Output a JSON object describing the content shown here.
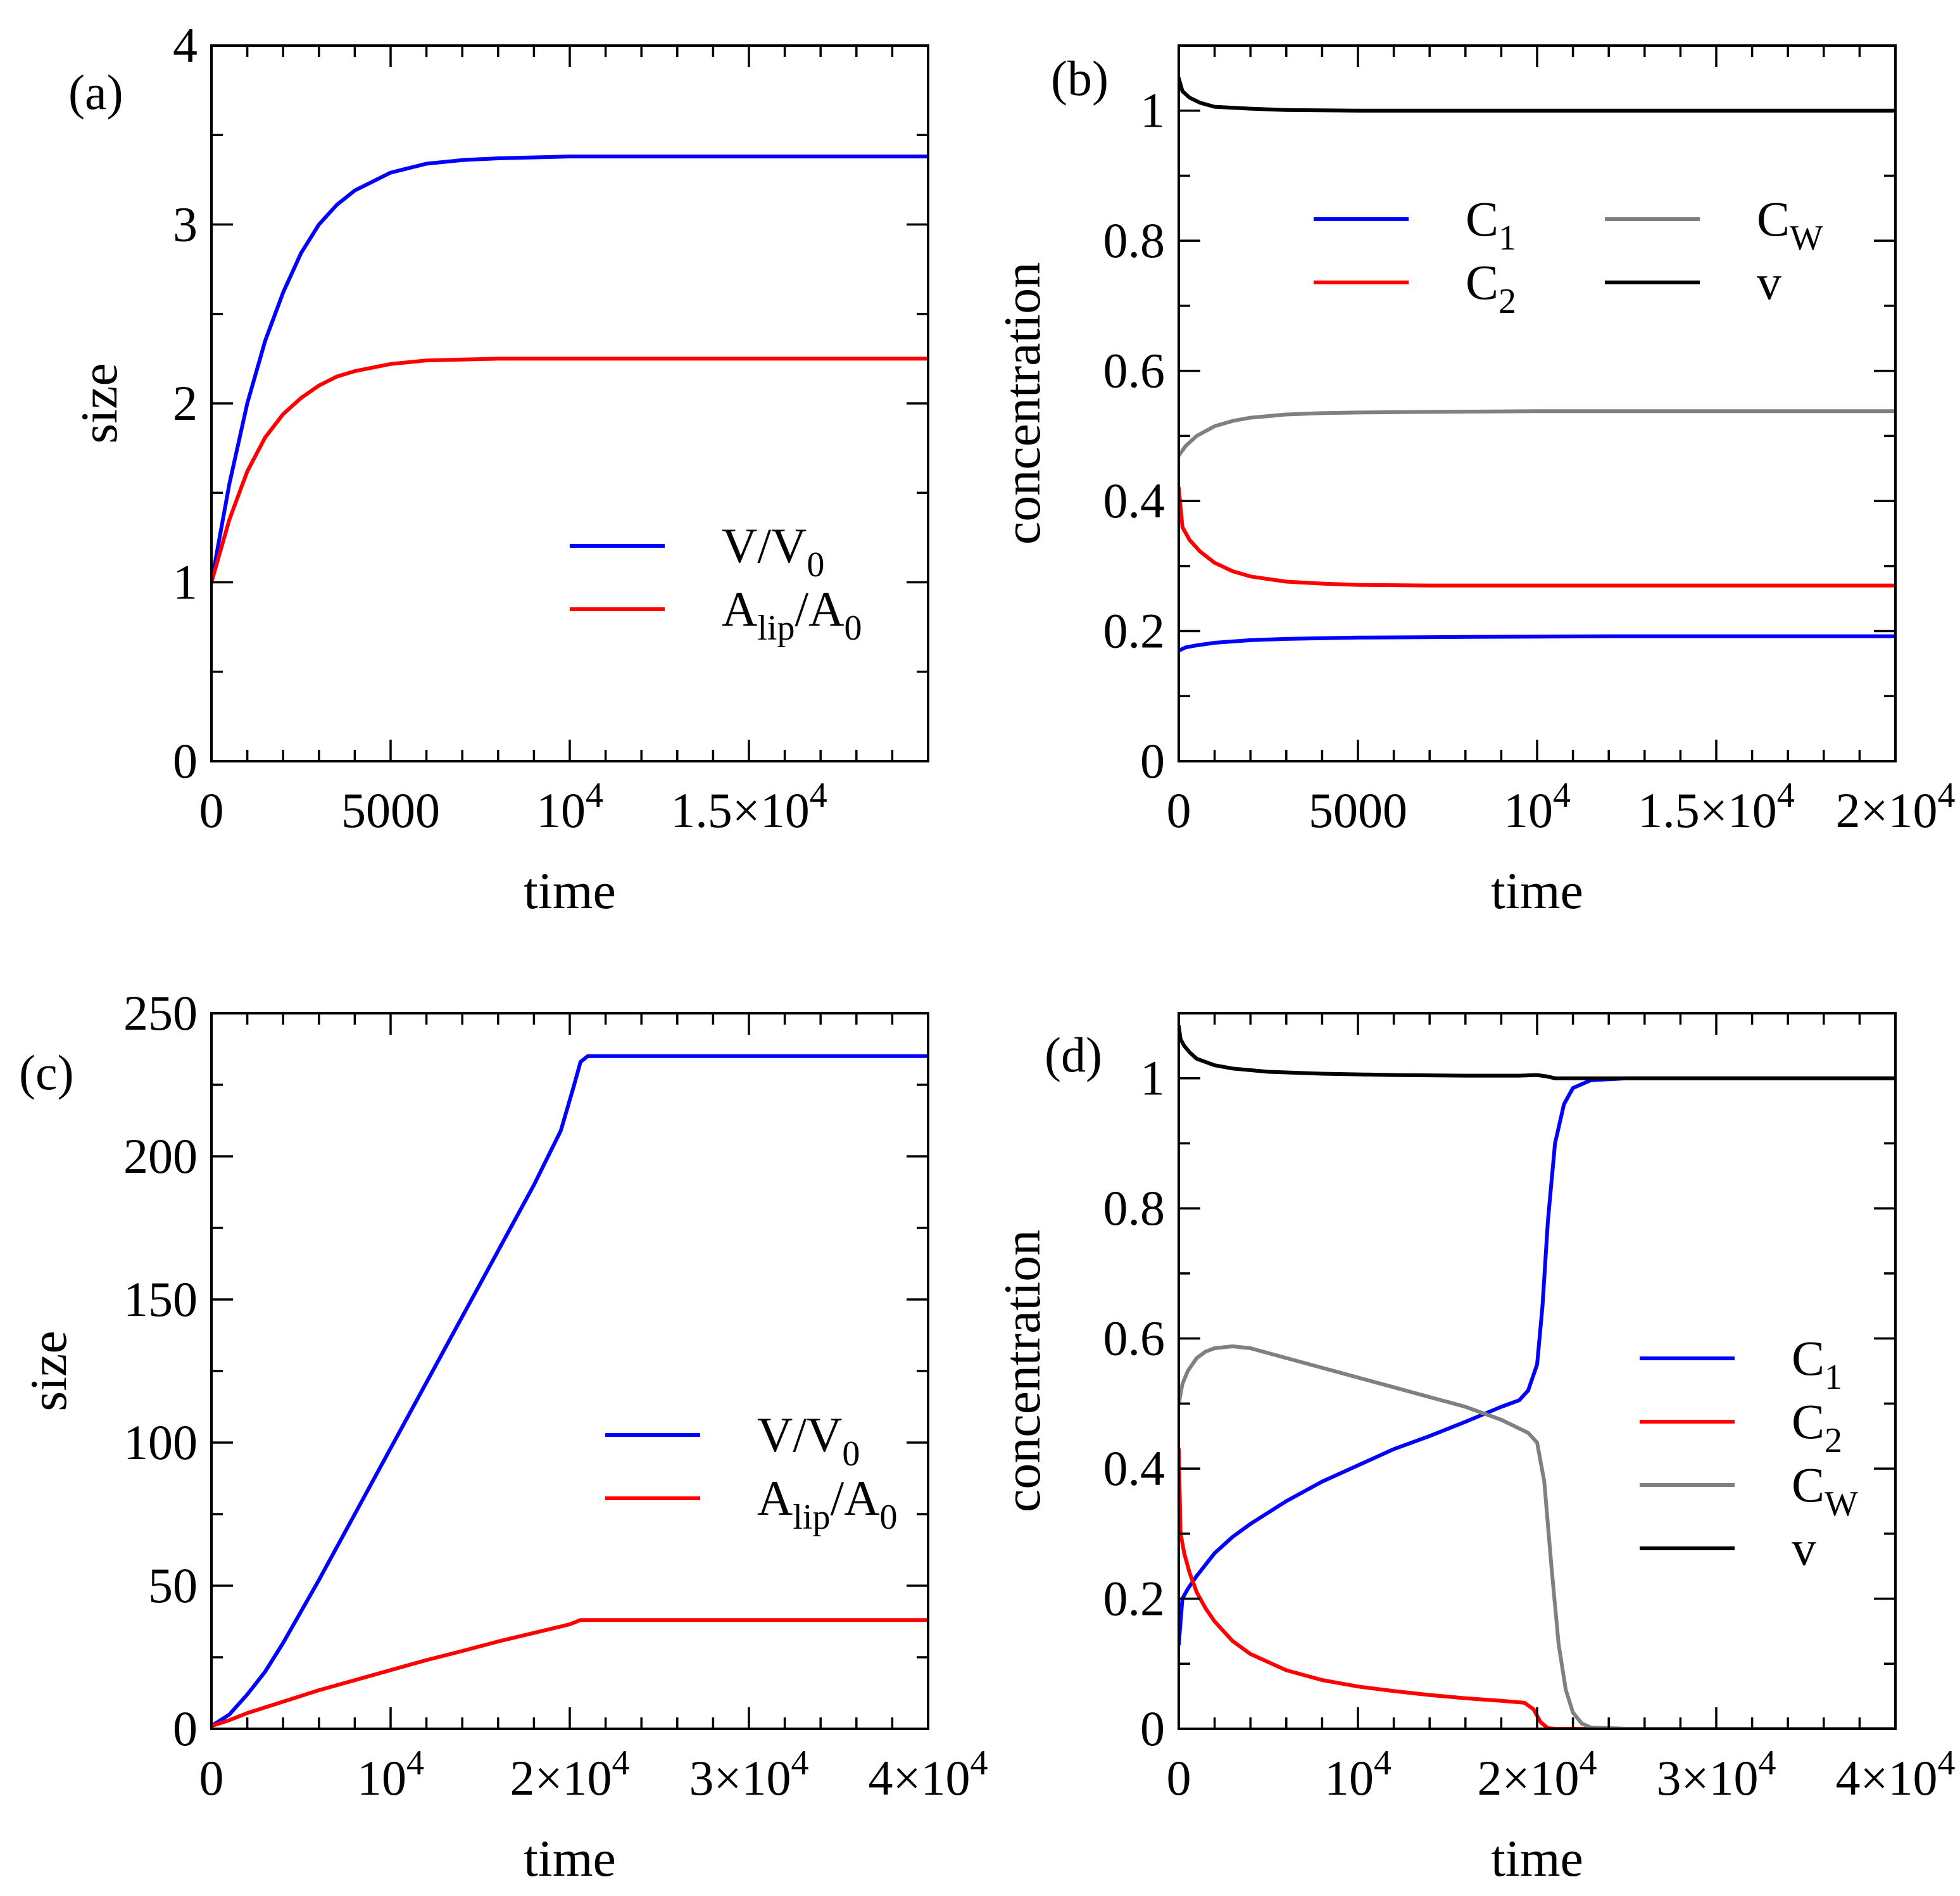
{
  "colors": {
    "V_over_V0": "#0000ff",
    "Alip_over_A0": "#ff0000",
    "C1": "#0000ff",
    "C2": "#ff0000",
    "CW": "#808080",
    "v": "#000000"
  },
  "chart_data": [
    {
      "id": "a",
      "panel_label": "(a)",
      "type": "line",
      "xlabel": "time",
      "ylabel": "size",
      "xlim": [
        0,
        20000
      ],
      "ylim": [
        0,
        4
      ],
      "xticks": [
        {
          "value": 0,
          "label": "0"
        },
        {
          "value": 5000,
          "label": "5000"
        },
        {
          "value": 10000,
          "label": "10",
          "sup": "4"
        },
        {
          "value": 15000,
          "label": "1.5×10",
          "sup": "4"
        }
      ],
      "yticks": [
        {
          "value": 0,
          "label": "0"
        },
        {
          "value": 1,
          "label": "1"
        },
        {
          "value": 2,
          "label": "2"
        },
        {
          "value": 3,
          "label": "3"
        },
        {
          "value": 4,
          "label": "4"
        }
      ],
      "legend": {
        "position": "center-right",
        "columns": 1
      },
      "series": [
        {
          "name": "V/V0",
          "label_main": "V/V",
          "label_sub": "0",
          "color_key": "V_over_V0",
          "x": [
            0,
            500,
            1000,
            1500,
            2000,
            2500,
            3000,
            3500,
            4000,
            5000,
            6000,
            7000,
            8000,
            10000,
            12000,
            15000,
            20000
          ],
          "y": [
            1.0,
            1.55,
            2.0,
            2.35,
            2.62,
            2.84,
            3.0,
            3.11,
            3.19,
            3.29,
            3.34,
            3.36,
            3.37,
            3.38,
            3.38,
            3.38,
            3.38
          ]
        },
        {
          "name": "Alip/A0",
          "label_main": "A",
          "label_sub": "lip",
          "label_main2": "/A",
          "label_sub2": "0",
          "color_key": "Alip_over_A0",
          "x": [
            0,
            500,
            1000,
            1500,
            2000,
            2500,
            3000,
            3500,
            4000,
            5000,
            6000,
            7000,
            8000,
            10000,
            12000,
            15000,
            20000
          ],
          "y": [
            1.0,
            1.35,
            1.62,
            1.81,
            1.94,
            2.03,
            2.1,
            2.15,
            2.18,
            2.22,
            2.24,
            2.245,
            2.25,
            2.25,
            2.25,
            2.25,
            2.25
          ]
        }
      ]
    },
    {
      "id": "b",
      "panel_label": "(b)",
      "type": "line",
      "xlabel": "time",
      "ylabel": "concentration",
      "xlim": [
        0,
        20000
      ],
      "ylim": [
        0,
        1.1
      ],
      "xticks": [
        {
          "value": 0,
          "label": "0"
        },
        {
          "value": 5000,
          "label": "5000"
        },
        {
          "value": 10000,
          "label": "10",
          "sup": "4"
        },
        {
          "value": 15000,
          "label": "1.5×10",
          "sup": "4"
        },
        {
          "value": 20000,
          "label": "2×10",
          "sup": "4"
        }
      ],
      "yticks": [
        {
          "value": 0,
          "label": "0"
        },
        {
          "value": 0.2,
          "label": "0.2"
        },
        {
          "value": 0.4,
          "label": "0.4"
        },
        {
          "value": 0.6,
          "label": "0.6"
        },
        {
          "value": 0.8,
          "label": "0.8"
        },
        {
          "value": 1.0,
          "label": "1"
        }
      ],
      "legend": {
        "position": "upper-center",
        "columns": 2
      },
      "series": [
        {
          "name": "C1",
          "label_main": "C",
          "label_sub": "1",
          "color_key": "C1",
          "x": [
            0,
            200,
            500,
            1000,
            2000,
            3000,
            5000,
            8000,
            12000,
            20000
          ],
          "y": [
            0.17,
            0.175,
            0.178,
            0.182,
            0.186,
            0.188,
            0.19,
            0.191,
            0.192,
            0.192
          ]
        },
        {
          "name": "C2",
          "label_main": "C",
          "label_sub": "2",
          "color_key": "C2",
          "x": [
            0,
            100,
            300,
            600,
            1000,
            1500,
            2000,
            3000,
            4000,
            5000,
            7000,
            10000,
            20000
          ],
          "y": [
            0.42,
            0.36,
            0.34,
            0.322,
            0.305,
            0.292,
            0.284,
            0.276,
            0.273,
            0.271,
            0.27,
            0.27,
            0.27
          ]
        },
        {
          "name": "CW",
          "label_main": "C",
          "label_sub": "W",
          "color_key": "CW",
          "x": [
            0,
            200,
            500,
            1000,
            1500,
            2000,
            3000,
            4000,
            5000,
            7000,
            10000,
            20000
          ],
          "y": [
            0.47,
            0.485,
            0.5,
            0.515,
            0.523,
            0.528,
            0.533,
            0.535,
            0.536,
            0.537,
            0.538,
            0.538
          ]
        },
        {
          "name": "v",
          "label_main": "v",
          "color_key": "v",
          "x": [
            0,
            100,
            300,
            600,
            1000,
            2000,
            3000,
            5000,
            8000,
            12000,
            20000
          ],
          "y": [
            1.05,
            1.03,
            1.02,
            1.012,
            1.006,
            1.003,
            1.001,
            1.0,
            1.0,
            1.0,
            1.0
          ]
        }
      ]
    },
    {
      "id": "c",
      "panel_label": "(c)",
      "type": "line",
      "xlabel": "time",
      "ylabel": "size",
      "xlim": [
        0,
        40000
      ],
      "ylim": [
        0,
        250
      ],
      "xticks": [
        {
          "value": 0,
          "label": "0"
        },
        {
          "value": 10000,
          "label": "10",
          "sup": "4"
        },
        {
          "value": 20000,
          "label": "2×10",
          "sup": "4"
        },
        {
          "value": 30000,
          "label": "3×10",
          "sup": "4"
        },
        {
          "value": 40000,
          "label": "4×10",
          "sup": "4"
        }
      ],
      "yticks": [
        {
          "value": 0,
          "label": "0"
        },
        {
          "value": 50,
          "label": "50"
        },
        {
          "value": 100,
          "label": "100"
        },
        {
          "value": 150,
          "label": "150"
        },
        {
          "value": 200,
          "label": "200"
        },
        {
          "value": 250,
          "label": "250"
        }
      ],
      "legend": {
        "position": "center-right",
        "columns": 1
      },
      "series": [
        {
          "name": "V/V0",
          "label_main": "V/V",
          "label_sub": "0",
          "color_key": "V_over_V0",
          "x": [
            0,
            1000,
            2000,
            3000,
            4000,
            5000,
            6000,
            8000,
            10000,
            12000,
            14000,
            16000,
            18000,
            19500,
            20200,
            20600,
            21000,
            25000,
            30000,
            40000
          ],
          "y": [
            1,
            5,
            12,
            20,
            30,
            41,
            52,
            75,
            98,
            121,
            144,
            167,
            190,
            209,
            224,
            233,
            235,
            235,
            235,
            235
          ]
        },
        {
          "name": "Alip/A0",
          "label_main": "A",
          "label_sub": "lip",
          "label_main2": "/A",
          "label_sub2": "0",
          "color_key": "Alip_over_A0",
          "x": [
            0,
            1000,
            2000,
            4000,
            6000,
            8000,
            10000,
            12000,
            14000,
            16000,
            18000,
            20000,
            20600,
            25000,
            30000,
            40000
          ],
          "y": [
            1,
            3,
            5.5,
            9.5,
            13.5,
            17,
            20.5,
            24,
            27.2,
            30.5,
            33.5,
            36.5,
            38,
            38,
            38,
            38
          ]
        }
      ]
    },
    {
      "id": "d",
      "panel_label": "(d)",
      "type": "line",
      "xlabel": "time",
      "ylabel": "concentration",
      "xlim": [
        0,
        40000
      ],
      "ylim": [
        0,
        1.1
      ],
      "xticks": [
        {
          "value": 0,
          "label": "0"
        },
        {
          "value": 10000,
          "label": "10",
          "sup": "4"
        },
        {
          "value": 20000,
          "label": "2×10",
          "sup": "4"
        },
        {
          "value": 30000,
          "label": "3×10",
          "sup": "4"
        },
        {
          "value": 40000,
          "label": "4×10",
          "sup": "4"
        }
      ],
      "yticks": [
        {
          "value": 0,
          "label": "0"
        },
        {
          "value": 0.2,
          "label": "0.2"
        },
        {
          "value": 0.4,
          "label": "0.4"
        },
        {
          "value": 0.6,
          "label": "0.6"
        },
        {
          "value": 0.8,
          "label": "0.8"
        },
        {
          "value": 1.0,
          "label": "1"
        }
      ],
      "legend": {
        "position": "center-right",
        "columns": 1
      },
      "series": [
        {
          "name": "C1",
          "label_main": "C",
          "label_sub": "1",
          "color_key": "C1",
          "x": [
            0,
            200,
            500,
            1000,
            2000,
            3000,
            4000,
            6000,
            8000,
            10000,
            12000,
            14000,
            16000,
            18000,
            19000,
            19500,
            20000,
            20300,
            20600,
            21000,
            21500,
            22000,
            23000,
            25000,
            30000,
            40000
          ],
          "y": [
            0.13,
            0.2,
            0.215,
            0.235,
            0.27,
            0.295,
            0.315,
            0.35,
            0.38,
            0.405,
            0.43,
            0.45,
            0.472,
            0.495,
            0.505,
            0.52,
            0.56,
            0.65,
            0.78,
            0.9,
            0.96,
            0.985,
            0.997,
            1.0,
            1.0,
            1.0
          ]
        },
        {
          "name": "C2",
          "label_main": "C",
          "label_sub": "2",
          "color_key": "C2",
          "x": [
            0,
            100,
            300,
            600,
            1000,
            1500,
            2000,
            3000,
            4000,
            6000,
            8000,
            10000,
            12000,
            14000,
            16000,
            18000,
            19300,
            19800,
            20200,
            20600,
            21000,
            25000,
            40000
          ],
          "y": [
            0.43,
            0.3,
            0.27,
            0.24,
            0.21,
            0.185,
            0.165,
            0.135,
            0.115,
            0.09,
            0.075,
            0.065,
            0.058,
            0.052,
            0.047,
            0.043,
            0.04,
            0.03,
            0.01,
            0.001,
            0.0,
            0.0,
            0.0
          ]
        },
        {
          "name": "CW",
          "label_main": "C",
          "label_sub": "W",
          "color_key": "CW",
          "x": [
            0,
            200,
            500,
            1000,
            1500,
            2000,
            3000,
            4000,
            6000,
            8000,
            10000,
            12000,
            14000,
            16000,
            18000,
            19500,
            20000,
            20400,
            20800,
            21200,
            21600,
            22000,
            22500,
            23000,
            25000,
            40000
          ],
          "y": [
            0.5,
            0.53,
            0.55,
            0.57,
            0.58,
            0.585,
            0.588,
            0.585,
            0.57,
            0.555,
            0.54,
            0.525,
            0.51,
            0.495,
            0.475,
            0.455,
            0.44,
            0.38,
            0.25,
            0.13,
            0.06,
            0.025,
            0.008,
            0.002,
            0.0,
            0.0
          ]
        },
        {
          "name": "v",
          "label_main": "v",
          "color_key": "v",
          "x": [
            0,
            100,
            300,
            600,
            1000,
            2000,
            3000,
            5000,
            8000,
            12000,
            16000,
            19000,
            20000,
            20500,
            21000,
            22000,
            25000,
            40000
          ],
          "y": [
            1.08,
            1.06,
            1.05,
            1.04,
            1.03,
            1.02,
            1.015,
            1.01,
            1.007,
            1.005,
            1.004,
            1.004,
            1.005,
            1.003,
            1.0,
            1.0,
            1.0,
            1.0
          ]
        }
      ]
    }
  ]
}
